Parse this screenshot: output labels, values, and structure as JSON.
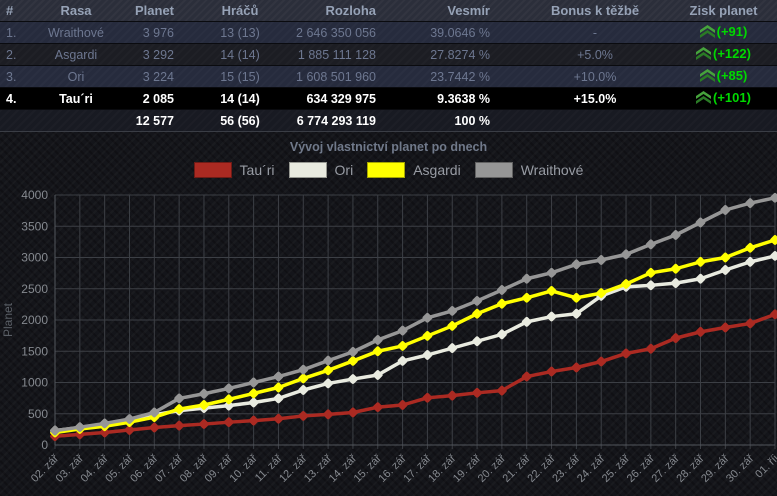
{
  "table": {
    "columns": [
      "#",
      "Rasa",
      "Planet",
      "Hráčů",
      "Rozloha",
      "Vesmír",
      "Bonus k těžbě",
      "Zisk planet"
    ],
    "rows": [
      {
        "rank": "1.",
        "race": "Wraithové",
        "planets": "3 976",
        "players": "13 (13)",
        "area": "2 646 350 056",
        "universe": "39.0646 %",
        "bonus": "-",
        "gain": "(+91)",
        "highlight": false
      },
      {
        "rank": "2.",
        "race": "Asgardi",
        "planets": "3 292",
        "players": "14 (14)",
        "area": "1 885 111 128",
        "universe": "27.8274 %",
        "bonus": "+5.0%",
        "gain": "(+122)",
        "highlight": false
      },
      {
        "rank": "3.",
        "race": "Ori",
        "planets": "3 224",
        "players": "15 (15)",
        "area": "1 608 501 960",
        "universe": "23.7442 %",
        "bonus": "+10.0%",
        "gain": "(+85)",
        "highlight": false
      },
      {
        "rank": "4.",
        "race": "Tau´ri",
        "planets": "2 085",
        "players": "14 (14)",
        "area": "634 329 975",
        "universe": "9.3638 %",
        "bonus": "+15.0%",
        "gain": "(+101)",
        "highlight": true
      }
    ],
    "total": {
      "planets": "12 577",
      "players": "56 (56)",
      "area": "6 774 293 119",
      "universe": "100 %"
    }
  },
  "chart_data": {
    "type": "line",
    "title": "Vývoj vlastnictví planet po dnech",
    "xlabel": "",
    "ylabel": "Planet",
    "ylim": [
      0,
      4000
    ],
    "ytick_step": 500,
    "grid": true,
    "legend_position": "top",
    "x": [
      "02. zář",
      "03. zář",
      "04. zář",
      "05. zář",
      "06. zář",
      "07. zář",
      "08. zář",
      "09. zář",
      "10. zář",
      "11. zář",
      "12. zář",
      "13. zář",
      "14. zář",
      "15. zář",
      "16. zář",
      "17. zář",
      "18. zář",
      "19. zář",
      "20. zář",
      "21. zář",
      "22. zář",
      "23. zář",
      "24. zář",
      "25. zář",
      "26. zář",
      "27. zář",
      "28. zář",
      "29. zář",
      "30. zář",
      "01. říj"
    ],
    "series": [
      {
        "name": "Tau´ri",
        "color": "#ab2a22",
        "values": [
          140,
          170,
          200,
          240,
          280,
          310,
          335,
          365,
          390,
          420,
          465,
          490,
          520,
          605,
          640,
          755,
          790,
          835,
          870,
          1095,
          1175,
          1240,
          1335,
          1465,
          1540,
          1710,
          1810,
          1880,
          1945,
          2090
        ]
      },
      {
        "name": "Ori",
        "color": "#e9ebe0",
        "values": [
          230,
          280,
          335,
          400,
          485,
          550,
          590,
          630,
          680,
          745,
          880,
          985,
          1055,
          1120,
          1345,
          1440,
          1550,
          1660,
          1770,
          1970,
          2055,
          2100,
          2385,
          2530,
          2555,
          2590,
          2660,
          2800,
          2930,
          3025
        ]
      },
      {
        "name": "Asgardi",
        "color": "#ffff00",
        "values": [
          200,
          255,
          300,
          365,
          445,
          575,
          640,
          730,
          825,
          920,
          1065,
          1195,
          1345,
          1500,
          1585,
          1745,
          1905,
          2100,
          2260,
          2355,
          2465,
          2355,
          2430,
          2575,
          2755,
          2820,
          2930,
          3000,
          3155,
          3280
        ]
      },
      {
        "name": "Wraithové",
        "color": "#969696",
        "values": [
          230,
          285,
          345,
          415,
          520,
          745,
          820,
          905,
          1000,
          1095,
          1205,
          1350,
          1490,
          1680,
          1830,
          2035,
          2145,
          2305,
          2480,
          2660,
          2755,
          2890,
          2960,
          3050,
          3210,
          3360,
          3560,
          3760,
          3870,
          3955
        ]
      }
    ]
  },
  "colors": {
    "gain_green": "#00d800",
    "chevron_light": "#46a33c",
    "chevron_dark": "#2a7b26",
    "grid": "#3c3f45",
    "axis": "#52565c",
    "tick_label": "#85898f",
    "axis_label": "#5a5f66"
  }
}
